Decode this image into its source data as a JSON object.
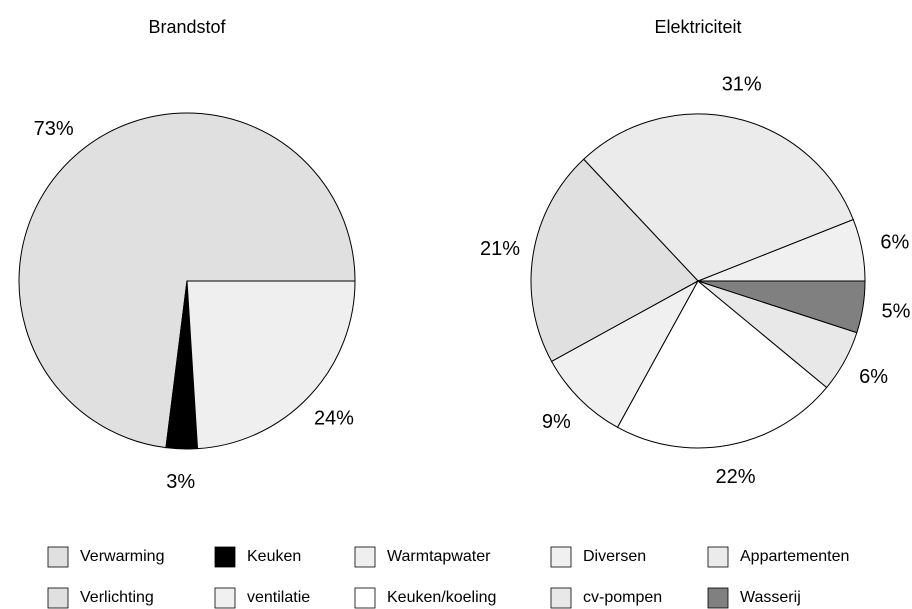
{
  "chart_data": [
    {
      "type": "pie",
      "title": "Brandstof",
      "categories": [
        "Verwarming",
        "Keuken",
        "Warmtapwater"
      ],
      "values": [
        73,
        3,
        24
      ],
      "value_labels": [
        "73%",
        "3%",
        "24%"
      ],
      "colors": [
        "#e0e0e0",
        "#000000",
        "#efefef"
      ]
    },
    {
      "type": "pie",
      "title": "Elektriciteit",
      "categories": [
        "Diversen",
        "Appartementen",
        "Verlichting",
        "ventilatie",
        "Keuken/koeling",
        "cv-pompen",
        "Wasserij"
      ],
      "values": [
        6,
        31,
        21,
        9,
        22,
        6,
        5
      ],
      "value_labels": [
        "6%",
        "31%",
        "21%",
        "9%",
        "22%",
        "6%",
        "5%"
      ],
      "colors": [
        "#f0f0f0",
        "#ebebeb",
        "#e0e0e0",
        "#f0f0f0",
        "#ffffff",
        "#e8e8e8",
        "#808080"
      ]
    }
  ]
}
